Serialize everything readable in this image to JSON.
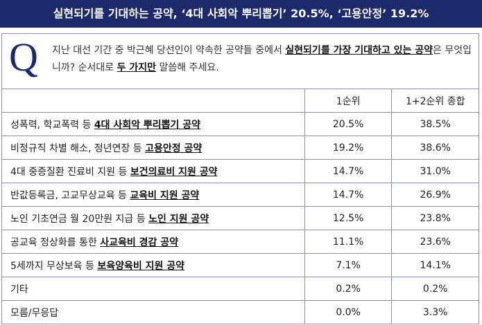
{
  "title": "실현되기를 기대하는 공약, ‘4대 사회악 뿌리뽑기’ 20.5%, ‘고용안정’ 19.2%",
  "question": {
    "mark": "Q",
    "parts": [
      {
        "text": "지난 대선 기간 중 박근혜 당선인이 약속한 공약들 중에서 ",
        "em": false
      },
      {
        "text": "실현되기를 가장 기대하고 있는 공약",
        "em": true
      },
      {
        "text": "은 무엇입니까? 순서대로 ",
        "em": false
      },
      {
        "text": "두 가지만",
        "em": true
      },
      {
        "text": " 말씀해 주세요.",
        "em": false
      }
    ]
  },
  "table": {
    "header": [
      "1순위",
      "1+2순위 종합"
    ],
    "rows": [
      {
        "label": "성폭력, 학교폭력 등 ",
        "key": "4대 사회악 뿌리뽑기 공약",
        "first": "20.5%",
        "combined": "38.5%"
      },
      {
        "label": "비정규직 차별 해소, 정년연장 등 ",
        "key": "고용안정 공약",
        "first": "19.2%",
        "combined": "38.6%"
      },
      {
        "label": "4대 중증질환 진료비 지원 등 ",
        "key": "보건의료비 지원 공약",
        "first": "14.7%",
        "combined": "31.0%"
      },
      {
        "label": "반값등록금, 고교무상교육 등 ",
        "key": "교육비 지원 공약",
        "first": "14.7%",
        "combined": "26.9%"
      },
      {
        "label": "노인 기초연금 월 20만원 지급 등 ",
        "key": "노인 지원 공약",
        "first": "12.5%",
        "combined": "23.8%"
      },
      {
        "label": "공교육 정상화를 통한 ",
        "key": "사교육비 경감 공약",
        "first": "11.1%",
        "combined": "23.6%"
      },
      {
        "label": "5세까지 무상보육 등 ",
        "key": "보육양육비 지원 공약",
        "first": "7.1%",
        "combined": "14.1%"
      },
      {
        "label": "기타",
        "first": "0.2%",
        "combined": "0.2%"
      },
      {
        "label": "모름/무응답",
        "first": "0.0%",
        "combined": "3.3%"
      }
    ]
  }
}
